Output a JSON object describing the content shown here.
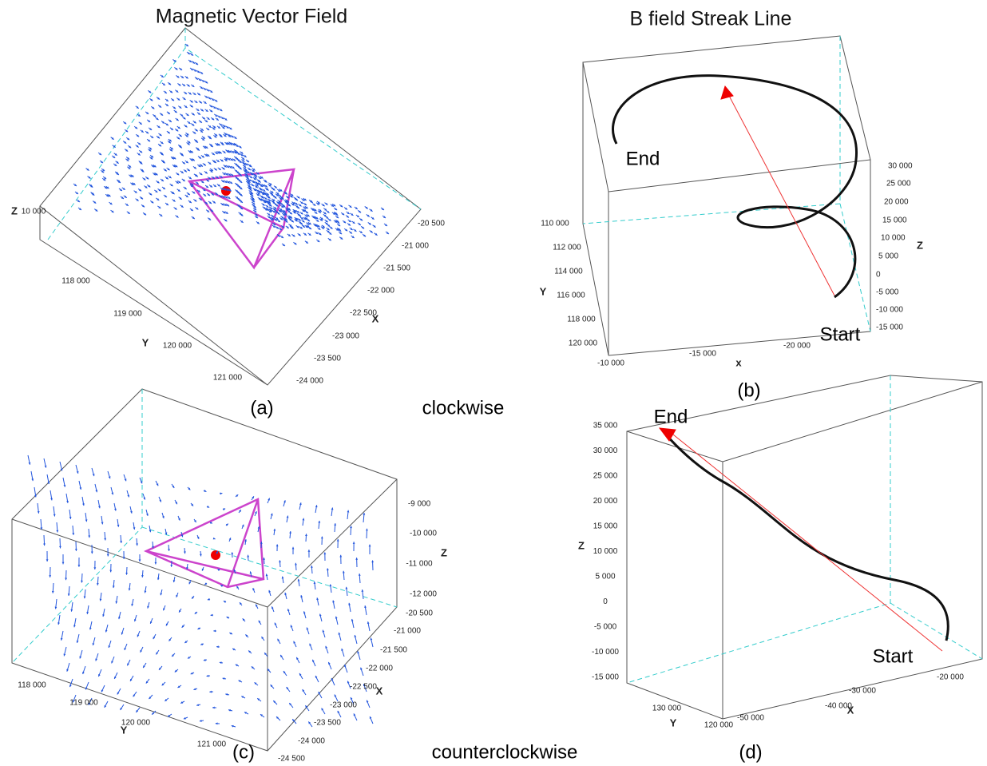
{
  "panels": [
    {
      "title": "Magnetic Vector Field",
      "label": "(a)",
      "z_label": "Z",
      "z_ticks": [
        "10 000"
      ],
      "y_label": "Y",
      "y_ticks": [
        "118 000",
        "119 000",
        "120 000",
        "121 000"
      ],
      "x_label": "X",
      "x_ticks": [
        "-20 500",
        "-21 000",
        "-21 500",
        "-22 000",
        "-22 500",
        "-23 000",
        "-23 500",
        "-24 000"
      ]
    },
    {
      "title": "B field  Streak Line",
      "label": "(b)",
      "z_label": "Z",
      "z_ticks": [
        "30 000",
        "25 000",
        "20 000",
        "15 000",
        "10 000",
        "5 000",
        "0",
        "-5 000",
        "-10 000",
        "-15 000"
      ],
      "y_label": "Y",
      "y_ticks": [
        "110 000",
        "112 000",
        "114 000",
        "116 000",
        "118 000",
        "120 000"
      ],
      "x_label": "x",
      "x_ticks": [
        "-10 000",
        "-15 000",
        "-20 000"
      ],
      "start": "Start",
      "end": "End"
    },
    {
      "label": "(c)",
      "z_label": "Z",
      "z_ticks": [
        "-9 000",
        "-10 000",
        "-11 000",
        "-12 000"
      ],
      "y_label": "Y",
      "y_ticks": [
        "118 000",
        "119 000",
        "120 000",
        "121 000"
      ],
      "x_label": "X",
      "x_ticks": [
        "-20 500",
        "-21 000",
        "-21 500",
        "-22 000",
        "-22 500",
        "-23 000",
        "-23 500",
        "-24 000",
        "-24 500"
      ]
    },
    {
      "label": "(d)",
      "z_label": "Z",
      "z_ticks": [
        "35 000",
        "30 000",
        "25 000",
        "20 000",
        "15 000",
        "10 000",
        "5 000",
        "0",
        "-5 000",
        "-10 000",
        "-15 000"
      ],
      "y_label": "Y",
      "y_ticks": [
        "130 000",
        "120 000"
      ],
      "x_label": "X",
      "x_ticks": [
        "-20 000",
        "-30 000",
        "-40 000",
        "-50 000"
      ],
      "start": "Start",
      "end": "End"
    }
  ],
  "captions": [
    "clockwise",
    "counterclockwise"
  ]
}
